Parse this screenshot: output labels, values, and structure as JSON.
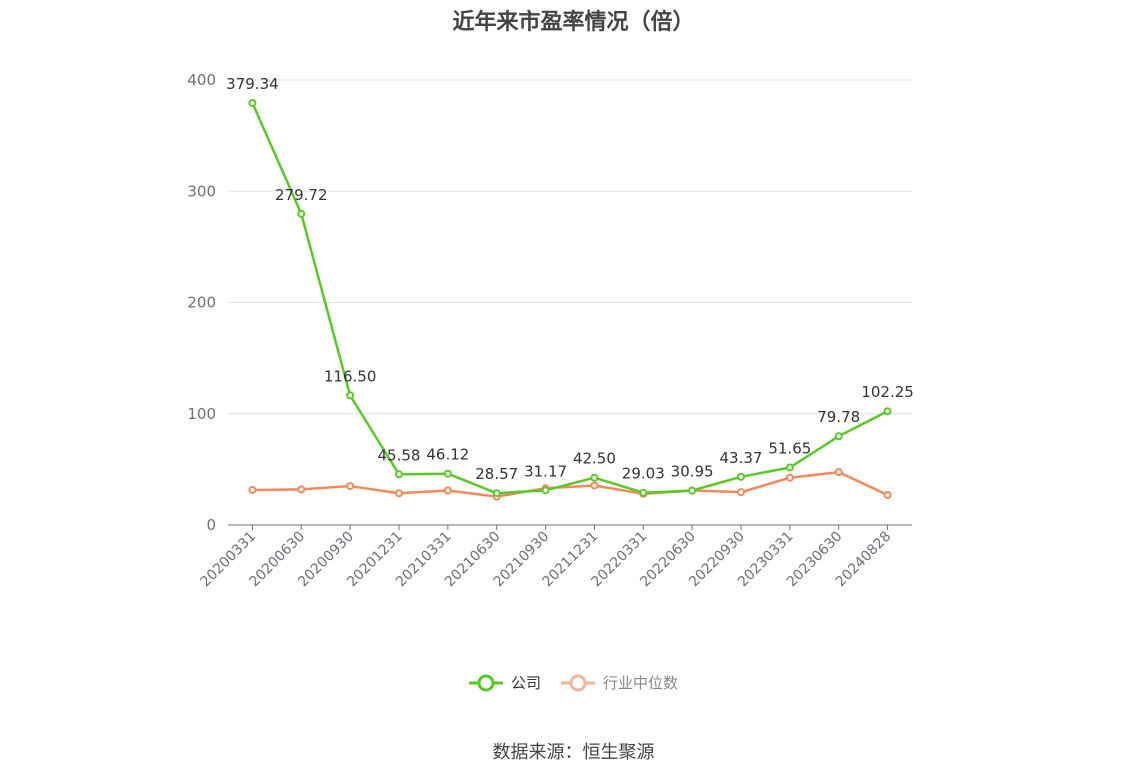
{
  "chart_data": {
    "type": "line",
    "title": "近年来市盈率情况（倍）",
    "categories": [
      "20200331",
      "20200630",
      "20200930",
      "20201231",
      "20210331",
      "20210630",
      "20210930",
      "20211231",
      "20220331",
      "20220630",
      "20220930",
      "20230331",
      "20230630",
      "20240828"
    ],
    "series": [
      {
        "name": "公司",
        "color": "#5ac828",
        "values": [
          379.34,
          279.72,
          116.5,
          45.58,
          46.12,
          28.57,
          31.17,
          42.5,
          29.03,
          30.95,
          43.37,
          51.65,
          79.78,
          102.25
        ],
        "labels": [
          "379.34",
          "279.72",
          "116.50",
          "45.58",
          "46.12",
          "28.57",
          "31.17",
          "42.50",
          "29.03",
          "30.95",
          "43.37",
          "51.65",
          "79.78",
          "102.25"
        ]
      },
      {
        "name": "行业中位数",
        "color": "#f08a5a",
        "values": [
          31.5,
          32.0,
          35.0,
          28.5,
          31.0,
          25.5,
          33.0,
          35.5,
          28.0,
          31.0,
          29.5,
          42.5,
          47.5,
          27.0
        ]
      }
    ],
    "yticks": [
      "0",
      "100",
      "200",
      "300",
      "400"
    ],
    "ylim": [
      0,
      400
    ],
    "grid": true,
    "legend_position": "bottom"
  },
  "legend_colors": {
    "company": "#5ac828",
    "industry": "#f4b39a"
  },
  "source": "数据来源：恒生聚源"
}
